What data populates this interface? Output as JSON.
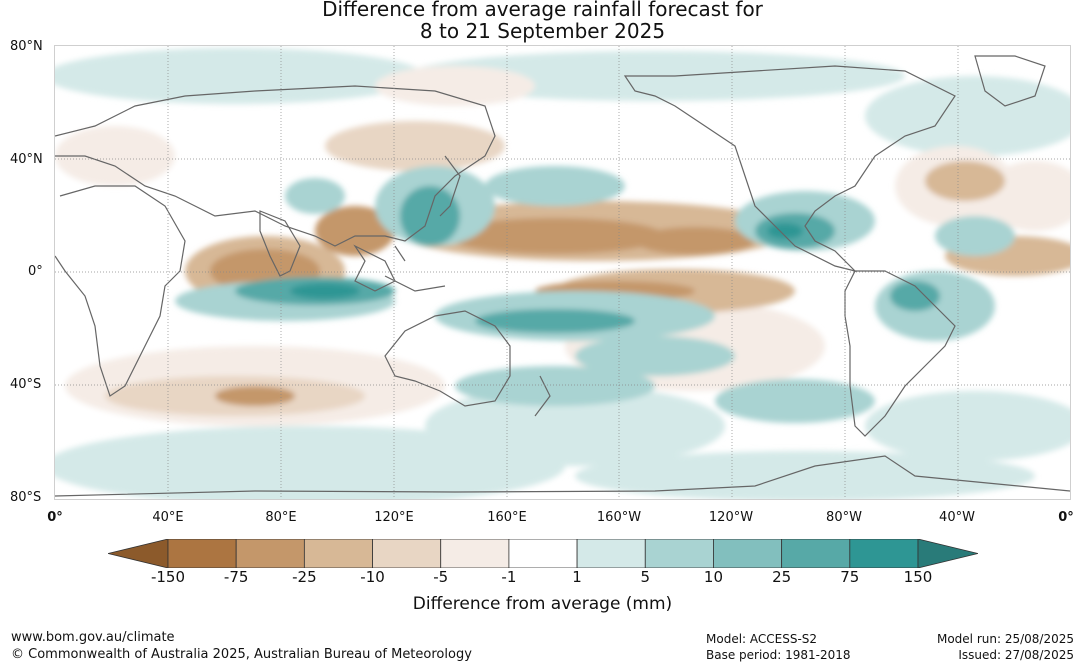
{
  "title": {
    "line1": "Difference from average rainfall forecast for",
    "line2": "8 to 21 September 2025"
  },
  "map": {
    "lat_labels": [
      "80°N",
      "40°N",
      "0°",
      "40°S",
      "80°S"
    ],
    "lon_labels": [
      "0°",
      "40°E",
      "80°E",
      "120°E",
      "160°E",
      "160°W",
      "120°W",
      "80°W",
      "40°W",
      "0°"
    ],
    "grid": true,
    "projection": "equirectangular"
  },
  "legend": {
    "title": "Difference from average (mm)",
    "tick_labels": [
      "-150",
      "-75",
      "-25",
      "-10",
      "-5",
      "-1",
      "1",
      "5",
      "10",
      "25",
      "75",
      "150"
    ],
    "colors": [
      "#8c5a2b",
      "#ac7541",
      "#c4976a",
      "#d7b896",
      "#e8d6c4",
      "#f5ece6",
      "#ffffff",
      "#d4e9e8",
      "#a9d3d2",
      "#82bfbe",
      "#57a9a7",
      "#2e9694",
      "#297b79"
    ]
  },
  "footer": {
    "url": "www.bom.gov.au/climate",
    "copyright": "© Commonwealth of Australia 2025, Australian Bureau of Meteorology",
    "model": "Model: ACCESS-S2",
    "base_period": "Base period: 1981-2018",
    "model_run": "Model run: 25/08/2025",
    "issued": "Issued: 27/08/2025"
  }
}
